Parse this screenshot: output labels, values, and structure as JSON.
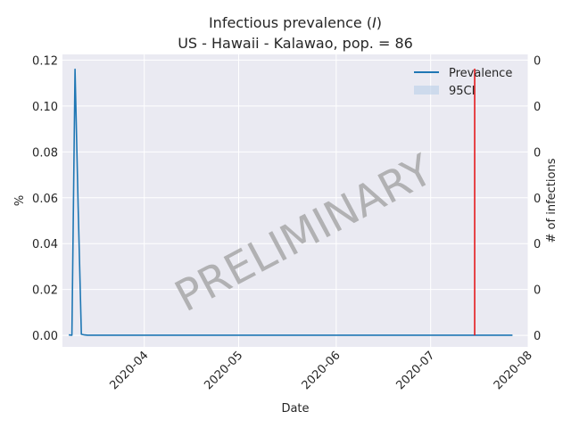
{
  "chart_data": {
    "type": "line",
    "title_prefix": "Infectious prevalence (",
    "title_var": "I",
    "title_suffix": ")",
    "subtitle": "US - Hawaii - Kalawao, pop. = 86",
    "xlabel": "Date",
    "ylabel": "%",
    "ylabel_right": "# of infections",
    "x_ticks": [
      "2020-04",
      "2020-05",
      "2020-06",
      "2020-07",
      "2020-08"
    ],
    "x_range": [
      "2020-03-06",
      "2020-08-01"
    ],
    "y_ticks": [
      "0.00",
      "0.02",
      "0.04",
      "0.06",
      "0.08",
      "0.10",
      "0.12"
    ],
    "y_right_ticks": [
      "0",
      "0",
      "0",
      "0",
      "0",
      "0",
      "0"
    ],
    "ylim": [
      -0.005,
      0.1225
    ],
    "grid": true,
    "legend_position": "top-right",
    "series": [
      {
        "name": "Prevalence",
        "color": "#1f77b4",
        "points": [
          [
            "2020-03-08",
            0.0002
          ],
          [
            "2020-03-09",
            0.0001
          ],
          [
            "2020-03-10",
            0.116
          ],
          [
            "2020-03-11",
            0.056
          ],
          [
            "2020-03-12",
            0.0005
          ],
          [
            "2020-03-13",
            0.0002
          ],
          [
            "2020-03-14",
            0.0001
          ],
          [
            "2020-04-01",
            0.0001
          ],
          [
            "2020-05-01",
            0.0001
          ],
          [
            "2020-06-01",
            0.0001
          ],
          [
            "2020-07-01",
            0.0001
          ],
          [
            "2020-07-27",
            0.0001
          ]
        ]
      }
    ],
    "band": {
      "name": "95CI",
      "color": "#b9cfe8"
    },
    "vline": {
      "date": "2020-07-15",
      "color": "#e41a1c"
    },
    "watermark": "PRELIMINARY"
  }
}
